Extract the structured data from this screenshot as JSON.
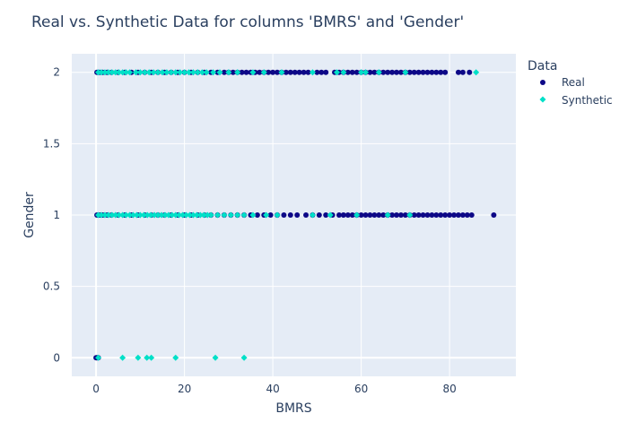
{
  "chart_data": {
    "type": "scatter",
    "title": "Real vs. Synthetic Data for columns 'BMRS' and 'Gender'",
    "xlabel": "BMRS",
    "ylabel": "Gender",
    "xlim": [
      -5.5,
      95
    ],
    "ylim": [
      -0.13,
      2.13
    ],
    "x_ticks": [
      0,
      20,
      40,
      60,
      80
    ],
    "x_tick_labels": [
      "0",
      "20",
      "40",
      "60",
      "80"
    ],
    "y_ticks": [
      0,
      0.5,
      1,
      1.5,
      2
    ],
    "y_tick_labels": [
      "0",
      "0.5",
      "1",
      "1.5",
      "2"
    ],
    "grid": true,
    "legend": {
      "title": "Data",
      "position": "right"
    },
    "series": [
      {
        "name": "Real",
        "color": "#0d0887",
        "marker": "circle",
        "points": [
          [
            0.0,
            0
          ],
          [
            0.2,
            0
          ],
          [
            0.5,
            0
          ],
          [
            0.2,
            1
          ],
          [
            0.8,
            1
          ],
          [
            1.5,
            1
          ],
          [
            2.5,
            1
          ],
          [
            3.5,
            1
          ],
          [
            5.0,
            1
          ],
          [
            6.5,
            1
          ],
          [
            8.0,
            1
          ],
          [
            9.5,
            1
          ],
          [
            11.0,
            1
          ],
          [
            12.5,
            1
          ],
          [
            14.0,
            1
          ],
          [
            15.5,
            1
          ],
          [
            17.0,
            1
          ],
          [
            18.5,
            1
          ],
          [
            20.0,
            1
          ],
          [
            21.5,
            1
          ],
          [
            23.0,
            1
          ],
          [
            24.5,
            1
          ],
          [
            26.0,
            1
          ],
          [
            27.5,
            1
          ],
          [
            29.0,
            1
          ],
          [
            30.5,
            1
          ],
          [
            32.0,
            1
          ],
          [
            33.5,
            1
          ],
          [
            35.0,
            1
          ],
          [
            36.5,
            1
          ],
          [
            38.0,
            1
          ],
          [
            39.5,
            1
          ],
          [
            41.0,
            1
          ],
          [
            42.5,
            1
          ],
          [
            44.0,
            1
          ],
          [
            45.5,
            1
          ],
          [
            47.5,
            1
          ],
          [
            49.0,
            1
          ],
          [
            50.5,
            1
          ],
          [
            52.0,
            1
          ],
          [
            53.5,
            1
          ],
          [
            55.0,
            1
          ],
          [
            56.0,
            1
          ],
          [
            57.0,
            1
          ],
          [
            58.0,
            1
          ],
          [
            59.0,
            1
          ],
          [
            60.0,
            1
          ],
          [
            61.0,
            1
          ],
          [
            62.0,
            1
          ],
          [
            63.0,
            1
          ],
          [
            64.0,
            1
          ],
          [
            65.0,
            1
          ],
          [
            66.0,
            1
          ],
          [
            67.0,
            1
          ],
          [
            68.0,
            1
          ],
          [
            69.0,
            1
          ],
          [
            70.0,
            1
          ],
          [
            71.0,
            1
          ],
          [
            72.0,
            1
          ],
          [
            73.0,
            1
          ],
          [
            74.0,
            1
          ],
          [
            75.0,
            1
          ],
          [
            76.0,
            1
          ],
          [
            77.0,
            1
          ],
          [
            78.0,
            1
          ],
          [
            79.0,
            1
          ],
          [
            80.0,
            1
          ],
          [
            81.0,
            1
          ],
          [
            82.0,
            1
          ],
          [
            83.0,
            1
          ],
          [
            84.0,
            1
          ],
          [
            85.0,
            1
          ],
          [
            90.0,
            1
          ],
          [
            0.2,
            2
          ],
          [
            0.8,
            2
          ],
          [
            1.5,
            2
          ],
          [
            2.5,
            2
          ],
          [
            3.5,
            2
          ],
          [
            5.0,
            2
          ],
          [
            6.5,
            2
          ],
          [
            8.0,
            2
          ],
          [
            9.5,
            2
          ],
          [
            11.0,
            2
          ],
          [
            12.5,
            2
          ],
          [
            14.0,
            2
          ],
          [
            15.5,
            2
          ],
          [
            17.0,
            2
          ],
          [
            18.5,
            2
          ],
          [
            20.0,
            2
          ],
          [
            21.5,
            2
          ],
          [
            23.0,
            2
          ],
          [
            24.5,
            2
          ],
          [
            26.0,
            2
          ],
          [
            27.5,
            2
          ],
          [
            29.0,
            2
          ],
          [
            30.0,
            2
          ],
          [
            31.0,
            2
          ],
          [
            32.0,
            2
          ],
          [
            33.0,
            2
          ],
          [
            34.0,
            2
          ],
          [
            35.0,
            2
          ],
          [
            36.0,
            2
          ],
          [
            37.0,
            2
          ],
          [
            38.0,
            2
          ],
          [
            39.0,
            2
          ],
          [
            40.0,
            2
          ],
          [
            41.0,
            2
          ],
          [
            42.0,
            2
          ],
          [
            43.0,
            2
          ],
          [
            44.0,
            2
          ],
          [
            45.0,
            2
          ],
          [
            46.0,
            2
          ],
          [
            47.0,
            2
          ],
          [
            48.0,
            2
          ],
          [
            50.0,
            2
          ],
          [
            51.0,
            2
          ],
          [
            52.0,
            2
          ],
          [
            54.0,
            2
          ],
          [
            55.0,
            2
          ],
          [
            56.0,
            2
          ],
          [
            57.0,
            2
          ],
          [
            58.0,
            2
          ],
          [
            59.0,
            2
          ],
          [
            60.0,
            2
          ],
          [
            61.0,
            2
          ],
          [
            62.0,
            2
          ],
          [
            63.0,
            2
          ],
          [
            64.0,
            2
          ],
          [
            65.0,
            2
          ],
          [
            66.0,
            2
          ],
          [
            67.0,
            2
          ],
          [
            68.0,
            2
          ],
          [
            69.0,
            2
          ],
          [
            70.0,
            2
          ],
          [
            71.0,
            2
          ],
          [
            72.0,
            2
          ],
          [
            73.0,
            2
          ],
          [
            74.0,
            2
          ],
          [
            75.0,
            2
          ],
          [
            76.0,
            2
          ],
          [
            77.0,
            2
          ],
          [
            78.0,
            2
          ],
          [
            79.0,
            2
          ],
          [
            82.0,
            2
          ],
          [
            83.0,
            2
          ],
          [
            84.5,
            2
          ]
        ]
      },
      {
        "name": "Synthetic",
        "color": "#00e0c8",
        "marker": "diamond",
        "points": [
          [
            0.5,
            0
          ],
          [
            6.0,
            0
          ],
          [
            9.5,
            0
          ],
          [
            11.5,
            0
          ],
          [
            12.5,
            0
          ],
          [
            18.0,
            0
          ],
          [
            27.0,
            0
          ],
          [
            33.5,
            0
          ],
          [
            0.5,
            1
          ],
          [
            1.2,
            1
          ],
          [
            2.0,
            1
          ],
          [
            2.8,
            1
          ],
          [
            3.6,
            1
          ],
          [
            4.4,
            1
          ],
          [
            5.2,
            1
          ],
          [
            6.0,
            1
          ],
          [
            6.8,
            1
          ],
          [
            7.6,
            1
          ],
          [
            8.4,
            1
          ],
          [
            9.2,
            1
          ],
          [
            10.0,
            1
          ],
          [
            10.8,
            1
          ],
          [
            11.6,
            1
          ],
          [
            12.4,
            1
          ],
          [
            13.2,
            1
          ],
          [
            14.0,
            1
          ],
          [
            14.8,
            1
          ],
          [
            15.6,
            1
          ],
          [
            16.4,
            1
          ],
          [
            17.2,
            1
          ],
          [
            18.0,
            1
          ],
          [
            18.8,
            1
          ],
          [
            19.6,
            1
          ],
          [
            20.4,
            1
          ],
          [
            21.2,
            1
          ],
          [
            22.0,
            1
          ],
          [
            22.8,
            1
          ],
          [
            23.6,
            1
          ],
          [
            24.4,
            1
          ],
          [
            25.2,
            1
          ],
          [
            26.0,
            1
          ],
          [
            27.5,
            1
          ],
          [
            29.0,
            1
          ],
          [
            30.5,
            1
          ],
          [
            32.0,
            1
          ],
          [
            33.5,
            1
          ],
          [
            35.5,
            1
          ],
          [
            38.5,
            1
          ],
          [
            41.0,
            1
          ],
          [
            49.0,
            1
          ],
          [
            53.0,
            1
          ],
          [
            59.0,
            1
          ],
          [
            66.0,
            1
          ],
          [
            71.0,
            1
          ],
          [
            0.5,
            2
          ],
          [
            1.2,
            2
          ],
          [
            2.0,
            2
          ],
          [
            2.8,
            2
          ],
          [
            3.6,
            2
          ],
          [
            4.4,
            2
          ],
          [
            5.2,
            2
          ],
          [
            6.0,
            2
          ],
          [
            6.8,
            2
          ],
          [
            7.6,
            2
          ],
          [
            9.0,
            2
          ],
          [
            10.0,
            2
          ],
          [
            11.0,
            2
          ],
          [
            12.0,
            2
          ],
          [
            13.0,
            2
          ],
          [
            14.0,
            2
          ],
          [
            15.0,
            2
          ],
          [
            16.0,
            2
          ],
          [
            17.0,
            2
          ],
          [
            18.0,
            2
          ],
          [
            19.0,
            2
          ],
          [
            20.0,
            2
          ],
          [
            21.0,
            2
          ],
          [
            22.0,
            2
          ],
          [
            23.0,
            2
          ],
          [
            24.0,
            2
          ],
          [
            25.0,
            2
          ],
          [
            26.5,
            2
          ],
          [
            28.0,
            2
          ],
          [
            30.0,
            2
          ],
          [
            32.0,
            2
          ],
          [
            35.5,
            2
          ],
          [
            38.0,
            2
          ],
          [
            42.0,
            2
          ],
          [
            49.0,
            2
          ],
          [
            54.5,
            2
          ],
          [
            56.0,
            2
          ],
          [
            60.0,
            2
          ],
          [
            61.0,
            2
          ],
          [
            64.0,
            2
          ],
          [
            70.0,
            2
          ],
          [
            86.0,
            2
          ]
        ]
      }
    ]
  }
}
